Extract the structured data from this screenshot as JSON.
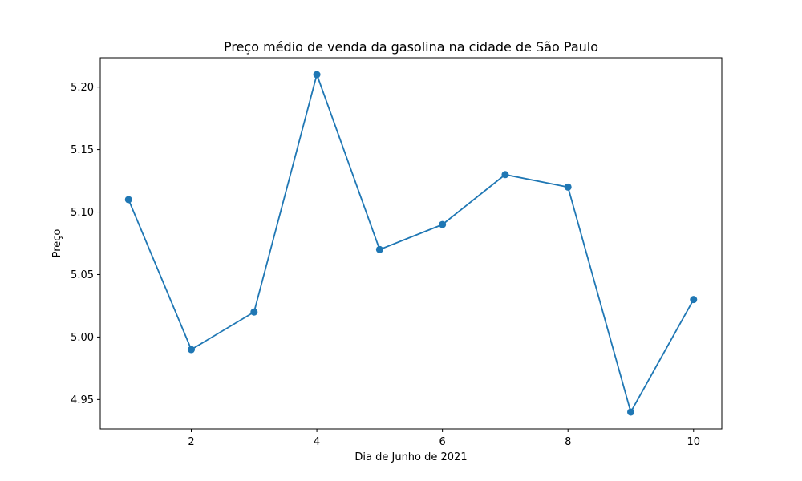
{
  "chart_data": {
    "type": "line",
    "title": "Preço médio de venda da gasolina na cidade de São Paulo",
    "xlabel": "Dia de Junho de 2021",
    "ylabel": "Preço",
    "x": [
      1,
      2,
      3,
      4,
      5,
      6,
      7,
      8,
      9,
      10
    ],
    "series": [
      {
        "values": [
          5.11,
          4.99,
          5.02,
          5.21,
          5.07,
          5.09,
          5.13,
          5.12,
          4.94,
          5.03
        ],
        "color": "#1f77b4"
      }
    ],
    "xlim": [
      0.55,
      10.45
    ],
    "ylim": [
      4.9265,
      5.2235
    ],
    "xticks": [
      "2",
      "4",
      "6",
      "8",
      "10"
    ],
    "yticks": [
      "4.95",
      "5.00",
      "5.05",
      "5.10",
      "5.15",
      "5.20"
    ],
    "grid": false,
    "markers": true
  }
}
